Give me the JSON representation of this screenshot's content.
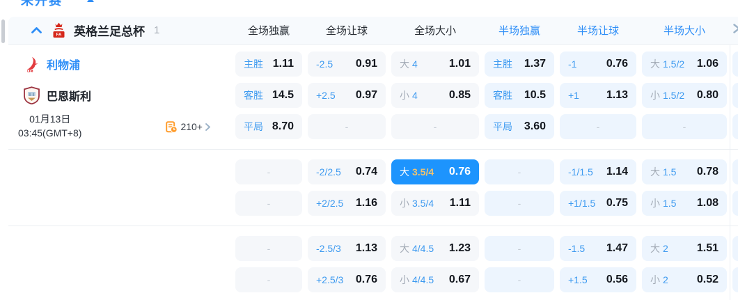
{
  "page": {
    "top_tab": "未开赛"
  },
  "league": {
    "name": "英格兰足总杯",
    "match_count": "1",
    "columns": [
      "全场独赢",
      "全场让球",
      "全场大小",
      "半场独赢",
      "半场让球",
      "半场大小"
    ]
  },
  "match": {
    "home_team": "利物浦",
    "away_team": "巴恩斯利",
    "date": "01月13日",
    "time": "03:45(GMT+8)",
    "more_markets": "210+"
  },
  "colors": {
    "accent_blue": "#2e8ef7",
    "highlight_blue": "#1d94fd",
    "highlight_gold": "#f2c36f",
    "stats_orange": "#ff9d2e"
  },
  "odds": {
    "dash": "-",
    "groups": [
      {
        "rows": [
          {
            "cells": [
              {
                "label": "主胜",
                "value": "1.11"
              },
              {
                "label": "-2.5",
                "value": "0.91"
              },
              {
                "prefix": "大",
                "line": "4",
                "value": "1.01"
              },
              {
                "label": "主胜",
                "value": "1.37"
              },
              {
                "label": "-1",
                "value": "0.76"
              },
              {
                "prefix": "大",
                "line": "1.5/2",
                "value": "1.06"
              }
            ]
          },
          {
            "cells": [
              {
                "label": "客胜",
                "value": "14.5"
              },
              {
                "label": "+2.5",
                "value": "0.97"
              },
              {
                "prefix": "小",
                "line": "4",
                "value": "0.85"
              },
              {
                "label": "客胜",
                "value": "10.5"
              },
              {
                "label": "+1",
                "value": "1.13"
              },
              {
                "prefix": "小",
                "line": "1.5/2",
                "value": "0.80"
              }
            ]
          },
          {
            "cells": [
              {
                "label": "平局",
                "value": "8.70"
              },
              {
                "empty": true
              },
              {
                "empty": true
              },
              {
                "label": "平局",
                "value": "3.60"
              },
              {
                "empty": true
              },
              {
                "empty": true
              }
            ]
          }
        ]
      },
      {
        "rows": [
          {
            "cells": [
              {
                "empty": true
              },
              {
                "label": "-2/2.5",
                "value": "0.74"
              },
              {
                "prefix": "大",
                "line": "3.5/4",
                "value": "0.76",
                "highlight": true
              },
              {
                "empty": true
              },
              {
                "label": "-1/1.5",
                "value": "1.14"
              },
              {
                "prefix": "大",
                "line": "1.5",
                "value": "0.78"
              }
            ]
          },
          {
            "cells": [
              {
                "empty": true
              },
              {
                "label": "+2/2.5",
                "value": "1.16"
              },
              {
                "prefix": "小",
                "line": "3.5/4",
                "value": "1.11"
              },
              {
                "empty": true
              },
              {
                "label": "+1/1.5",
                "value": "0.75"
              },
              {
                "prefix": "小",
                "line": "1.5",
                "value": "1.08"
              }
            ]
          }
        ]
      },
      {
        "rows": [
          {
            "cells": [
              {
                "empty": true
              },
              {
                "label": "-2.5/3",
                "value": "1.13"
              },
              {
                "prefix": "大",
                "line": "4/4.5",
                "value": "1.23"
              },
              {
                "empty": true
              },
              {
                "label": "-1.5",
                "value": "1.47"
              },
              {
                "prefix": "大",
                "line": "2",
                "value": "1.51"
              }
            ]
          },
          {
            "cells": [
              {
                "empty": true
              },
              {
                "label": "+2.5/3",
                "value": "0.76"
              },
              {
                "prefix": "小",
                "line": "4/4.5",
                "value": "0.67"
              },
              {
                "empty": true
              },
              {
                "label": "+1.5",
                "value": "0.56"
              },
              {
                "prefix": "小",
                "line": "2",
                "value": "0.52"
              }
            ]
          }
        ]
      }
    ]
  }
}
